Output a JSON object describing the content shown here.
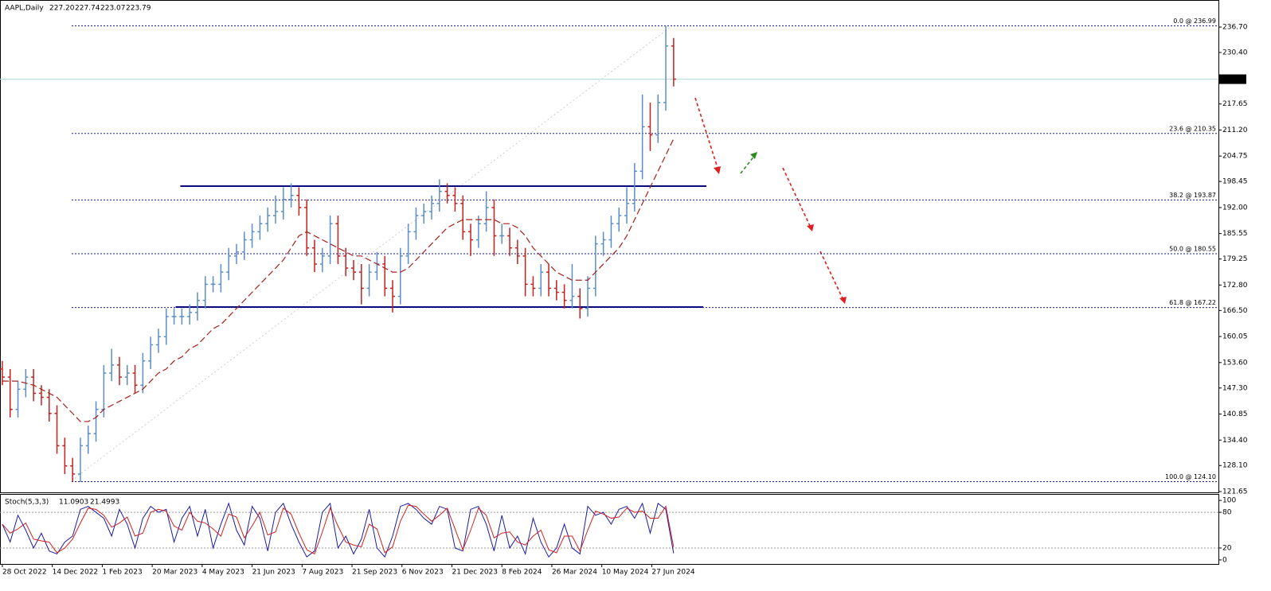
{
  "chart_data": [
    {
      "type": "ohlc",
      "title": "AAPL,Daily",
      "quote": {
        "values": [
          227.2,
          227.74,
          223.07,
          223.79
        ],
        "value_labels": [
          "227.20",
          "227.74",
          "223.07",
          "223.79"
        ]
      },
      "x": [
        0,
        5,
        10,
        15,
        20,
        25,
        30,
        35,
        40,
        45,
        50,
        55,
        60,
        65,
        70,
        75,
        80,
        85,
        90,
        95,
        100,
        105,
        110,
        115,
        120,
        125,
        130,
        135,
        140,
        145,
        150,
        155,
        160,
        165,
        170,
        175,
        180,
        185,
        190,
        195,
        200,
        205,
        210,
        215,
        220,
        225,
        230,
        235,
        240,
        245,
        250,
        255,
        260,
        265,
        270,
        275,
        280,
        285,
        290,
        295,
        300,
        305,
        310,
        315,
        320,
        325,
        330,
        335,
        340,
        345,
        350,
        355,
        360,
        365,
        370,
        375,
        380,
        385,
        390,
        395,
        400,
        405,
        410,
        415,
        420,
        425,
        430
      ],
      "open": [
        152,
        150,
        142,
        147,
        150,
        146,
        145,
        141,
        133,
        128,
        126,
        133,
        136,
        142,
        151,
        153,
        150,
        151,
        148,
        154,
        158,
        160,
        165,
        165,
        165,
        166,
        169,
        173,
        173,
        176,
        180,
        181,
        184,
        186,
        188,
        190,
        191,
        194,
        195,
        192,
        182,
        178,
        180,
        188,
        180,
        177,
        176,
        172,
        176,
        178,
        172,
        170,
        180,
        186,
        190,
        191,
        193,
        196,
        195,
        193,
        186,
        184,
        188,
        192,
        185,
        185,
        182,
        180,
        173,
        172,
        176,
        172,
        171,
        169,
        170,
        167,
        172,
        183,
        184,
        188,
        190,
        193,
        201,
        212,
        210,
        218,
        232
      ],
      "high": [
        154,
        152,
        149,
        152,
        152,
        148,
        147,
        143,
        135,
        130,
        135,
        138,
        144,
        153,
        157,
        155,
        153,
        153,
        156,
        160,
        162,
        167,
        167,
        167,
        168,
        171,
        175,
        175,
        178,
        182,
        183,
        186,
        188,
        190,
        192,
        195,
        197,
        198,
        197,
        194,
        184,
        182,
        190,
        190,
        182,
        179,
        178,
        178,
        181,
        180,
        174,
        182,
        188,
        192,
        193,
        195,
        199,
        198,
        197,
        195,
        188,
        190,
        196,
        194,
        188,
        187,
        184,
        182,
        175,
        178,
        178,
        174,
        173,
        178,
        172,
        175,
        185,
        186,
        190,
        192,
        197,
        203,
        220,
        218,
        220,
        236.99,
        234
      ],
      "low": [
        148,
        140,
        140,
        145,
        144,
        143,
        139,
        131,
        126,
        124.1,
        124,
        131,
        134,
        140,
        149,
        148,
        148,
        146,
        146,
        152,
        156,
        158,
        163,
        163,
        163,
        164,
        167,
        171,
        171,
        174,
        178,
        179,
        182,
        184,
        186,
        188,
        189,
        192,
        190,
        180,
        176,
        176,
        178,
        178,
        175,
        174,
        168,
        170,
        174,
        170,
        166,
        168,
        178,
        184,
        188,
        189,
        191,
        193,
        191,
        184,
        180,
        182,
        186,
        180,
        183,
        180,
        178,
        170,
        170,
        170,
        170,
        169,
        167,
        167,
        164.5,
        165,
        170,
        180,
        182,
        186,
        188,
        191,
        199,
        206,
        208,
        216,
        222
      ],
      "close": [
        150,
        142,
        147,
        150,
        146,
        145,
        141,
        133,
        128,
        126,
        133,
        136,
        142,
        151,
        153,
        150,
        151,
        148,
        154,
        158,
        160,
        165,
        165,
        165,
        166,
        169,
        173,
        173,
        176,
        180,
        181,
        184,
        186,
        188,
        190,
        191,
        194,
        195,
        192,
        182,
        178,
        180,
        188,
        180,
        177,
        176,
        172,
        176,
        178,
        172,
        170,
        180,
        186,
        190,
        191,
        193,
        196,
        195,
        193,
        186,
        184,
        188,
        192,
        185,
        185,
        182,
        180,
        173,
        172,
        176,
        172,
        171,
        169,
        170,
        167,
        172,
        183,
        184,
        188,
        190,
        193,
        201,
        212,
        210,
        218,
        232,
        223.79
      ],
      "up_color": "#5b8ec9",
      "down_color": "#c8201e",
      "last_color": "#b9dbe8",
      "moving_average": {
        "color": "#a8201a",
        "values": [
          149,
          149,
          149,
          148.5,
          148,
          147,
          146,
          145,
          143,
          141,
          139,
          139,
          140,
          142,
          143,
          144,
          145,
          146,
          147,
          149,
          151,
          152,
          154,
          155,
          157,
          158,
          160,
          162,
          163,
          165,
          167,
          169,
          171,
          173,
          175,
          177,
          179,
          182,
          185,
          186,
          185,
          184,
          183,
          182,
          181,
          180,
          180,
          179,
          178,
          177,
          176,
          176,
          177,
          179,
          181,
          183,
          185,
          187,
          188,
          189,
          189,
          189,
          189,
          189,
          188,
          188,
          187,
          185,
          182,
          180,
          178,
          176,
          175,
          174,
          174,
          174,
          176,
          178,
          180,
          182,
          185,
          189,
          193,
          197,
          201,
          205,
          209
        ]
      },
      "fib_levels": [
        {
          "label": "0.0 @ 236.99",
          "value": 236.99
        },
        {
          "label": "23.6 @ 210.35",
          "value": 210.35
        },
        {
          "label": "38.2 @ 193.87",
          "value": 193.87
        },
        {
          "label": "50.0 @ 180.55",
          "value": 180.55
        },
        {
          "label": "61.8 @ 167.22",
          "value": 167.22
        },
        {
          "label": "100.0 @ 124.10",
          "value": 124.1
        }
      ],
      "levels": [
        {
          "value": 197.3,
          "x": [
            114,
            451
          ]
        },
        {
          "value": 167.36,
          "x": [
            111,
            449
          ]
        }
      ],
      "xlim": [
        -1.5,
        779
      ],
      "ylim": [
        121.45,
        243.4
      ],
      "yticks": [
        {
          "value": 236.7,
          "label": "236.70"
        },
        {
          "value": 230.4,
          "label": "230.40"
        },
        217.65,
        {
          "value": 211.2,
          "label": "211.20"
        },
        204.75,
        198.45,
        {
          "value": 192,
          "label": "192.00"
        },
        185.55,
        179.25,
        {
          "value": 172.8,
          "label": "172.80"
        },
        {
          "value": 166.5,
          "label": "166.50"
        },
        160.05,
        {
          "value": 153.6,
          "label": "153.60"
        },
        {
          "value": 147.3,
          "label": "147.30"
        },
        140.85,
        {
          "value": 134.4,
          "label": "134.40"
        },
        {
          "value": 128.1,
          "label": "128.10"
        },
        121.65
      ],
      "xticks": [
        {
          "value": 0,
          "label": "28 Oct 2022"
        },
        {
          "value": 32,
          "label": "14 Dec 2022"
        },
        {
          "value": 64,
          "label": "1 Feb 2023"
        },
        {
          "value": 96,
          "label": "20 Mar 2023"
        },
        {
          "value": 128,
          "label": "4 May 2023"
        },
        {
          "value": 160,
          "label": "21 Jun 2023"
        },
        {
          "value": 192,
          "label": "7 Aug 2023"
        },
        {
          "value": 224,
          "label": "21 Sep 2023"
        },
        {
          "value": 256,
          "label": "6 Nov 2023"
        },
        {
          "value": 288,
          "label": "21 Dec 2023"
        },
        {
          "value": 320,
          "label": "8 Feb 2024"
        },
        {
          "value": 352,
          "label": "26 Mar 2024"
        },
        {
          "value": 384,
          "label": "10 May 2024"
        },
        {
          "value": 416,
          "label": "27 Jun 2024"
        }
      ]
    },
    {
      "type": "line",
      "title": "Stoch(5,3,3)",
      "x": [
        0,
        5,
        10,
        15,
        20,
        25,
        30,
        35,
        40,
        45,
        50,
        55,
        60,
        65,
        70,
        75,
        80,
        85,
        90,
        95,
        100,
        105,
        110,
        115,
        120,
        125,
        130,
        135,
        140,
        145,
        150,
        155,
        160,
        165,
        170,
        175,
        180,
        185,
        190,
        195,
        200,
        205,
        210,
        215,
        220,
        225,
        230,
        235,
        240,
        245,
        250,
        255,
        260,
        265,
        270,
        275,
        280,
        285,
        290,
        295,
        300,
        305,
        310,
        315,
        320,
        325,
        330,
        335,
        340,
        345,
        350,
        355,
        360,
        365,
        370,
        375,
        380,
        385,
        390,
        395,
        400,
        405,
        410,
        415,
        420,
        425,
        430
      ],
      "series": [
        {
          "color": "#1a1aa8",
          "values": [
            60,
            30,
            75,
            50,
            20,
            45,
            15,
            10,
            30,
            40,
            85,
            90,
            80,
            70,
            40,
            85,
            60,
            20,
            70,
            90,
            80,
            85,
            30,
            70,
            90,
            40,
            85,
            20,
            60,
            95,
            50,
            25,
            90,
            70,
            15,
            80,
            95,
            60,
            30,
            5,
            15,
            80,
            95,
            20,
            40,
            10,
            35,
            85,
            20,
            5,
            40,
            90,
            95,
            85,
            70,
            60,
            90,
            85,
            20,
            15,
            85,
            90,
            60,
            15,
            75,
            20,
            40,
            10,
            70,
            30,
            5,
            20,
            60,
            20,
            10,
            90,
            75,
            80,
            60,
            85,
            90,
            70,
            95,
            45,
            95,
            85,
            11.0903
          ]
        },
        {
          "color": "#d42020",
          "values": [
            60,
            45,
            52,
            62,
            35,
            32,
            30,
            12,
            20,
            35,
            62,
            87,
            85,
            75,
            55,
            62,
            72,
            40,
            45,
            80,
            85,
            82,
            57,
            50,
            80,
            65,
            62,
            52,
            40,
            77,
            72,
            37,
            57,
            80,
            42,
            47,
            87,
            77,
            45,
            17,
            10,
            47,
            87,
            57,
            30,
            25,
            22,
            60,
            52,
            12,
            22,
            65,
            92,
            90,
            77,
            65,
            75,
            87,
            52,
            17,
            50,
            87,
            75,
            37,
            45,
            47,
            30,
            25,
            40,
            50,
            17,
            12,
            40,
            40,
            15,
            50,
            82,
            77,
            70,
            72,
            87,
            80,
            82,
            70,
            70,
            90,
            21.4993
          ]
        }
      ],
      "levels": [
        80,
        20
      ],
      "xlim": [
        -1.5,
        779
      ],
      "ylim": [
        -6.8,
        109.5
      ],
      "yticks": [
        100,
        80,
        20,
        0
      ]
    }
  ]
}
